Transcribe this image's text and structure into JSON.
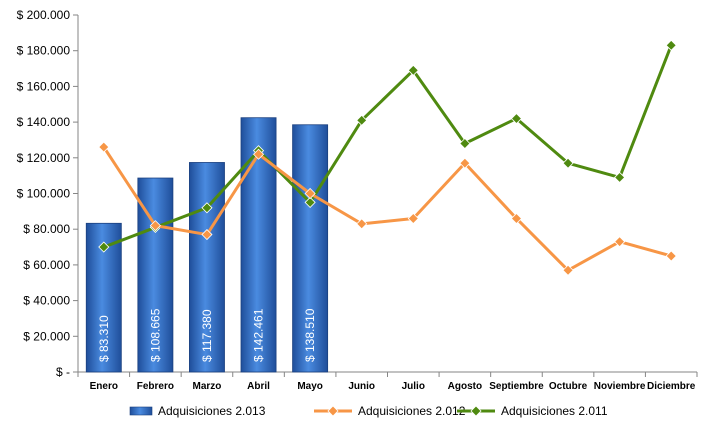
{
  "chart_data": {
    "type": "bar",
    "categories": [
      "Enero",
      "Febrero",
      "Marzo",
      "Abril",
      "Mayo",
      "Junio",
      "Julio",
      "Agosto",
      "Septiembre",
      "Octubre",
      "Noviembre",
      "Diciembre"
    ],
    "series": [
      {
        "name": "Adquisiciones 2.013",
        "type": "bar",
        "color": "#2E6FC8",
        "values": [
          83310,
          108665,
          117380,
          142461,
          138510,
          null,
          null,
          null,
          null,
          null,
          null,
          null
        ],
        "labels": [
          "$ 83.310",
          "$ 108.665",
          "$ 117.380",
          "$ 142.461",
          "$ 138.510"
        ]
      },
      {
        "name": "Adquisiciones 2.012",
        "type": "line",
        "color": "#F79646",
        "values": [
          126000,
          82000,
          77000,
          122000,
          100000,
          83000,
          86000,
          117000,
          86000,
          57000,
          73000,
          65000
        ]
      },
      {
        "name": "Adquisiciones 2.011",
        "type": "line",
        "color": "#4F8A10",
        "values": [
          70000,
          81000,
          92000,
          124000,
          95000,
          141000,
          169000,
          128000,
          142000,
          117000,
          109000,
          183000
        ]
      }
    ],
    "yticks": [
      "$ -",
      "$ 20.000",
      "$ 40.000",
      "$ 60.000",
      "$ 80.000",
      "$ 100.000",
      "$ 120.000",
      "$ 140.000",
      "$ 160.000",
      "$ 180.000",
      "$ 200.000"
    ],
    "ylim": [
      0,
      200000
    ],
    "grid": false,
    "legend_position": "bottom"
  }
}
